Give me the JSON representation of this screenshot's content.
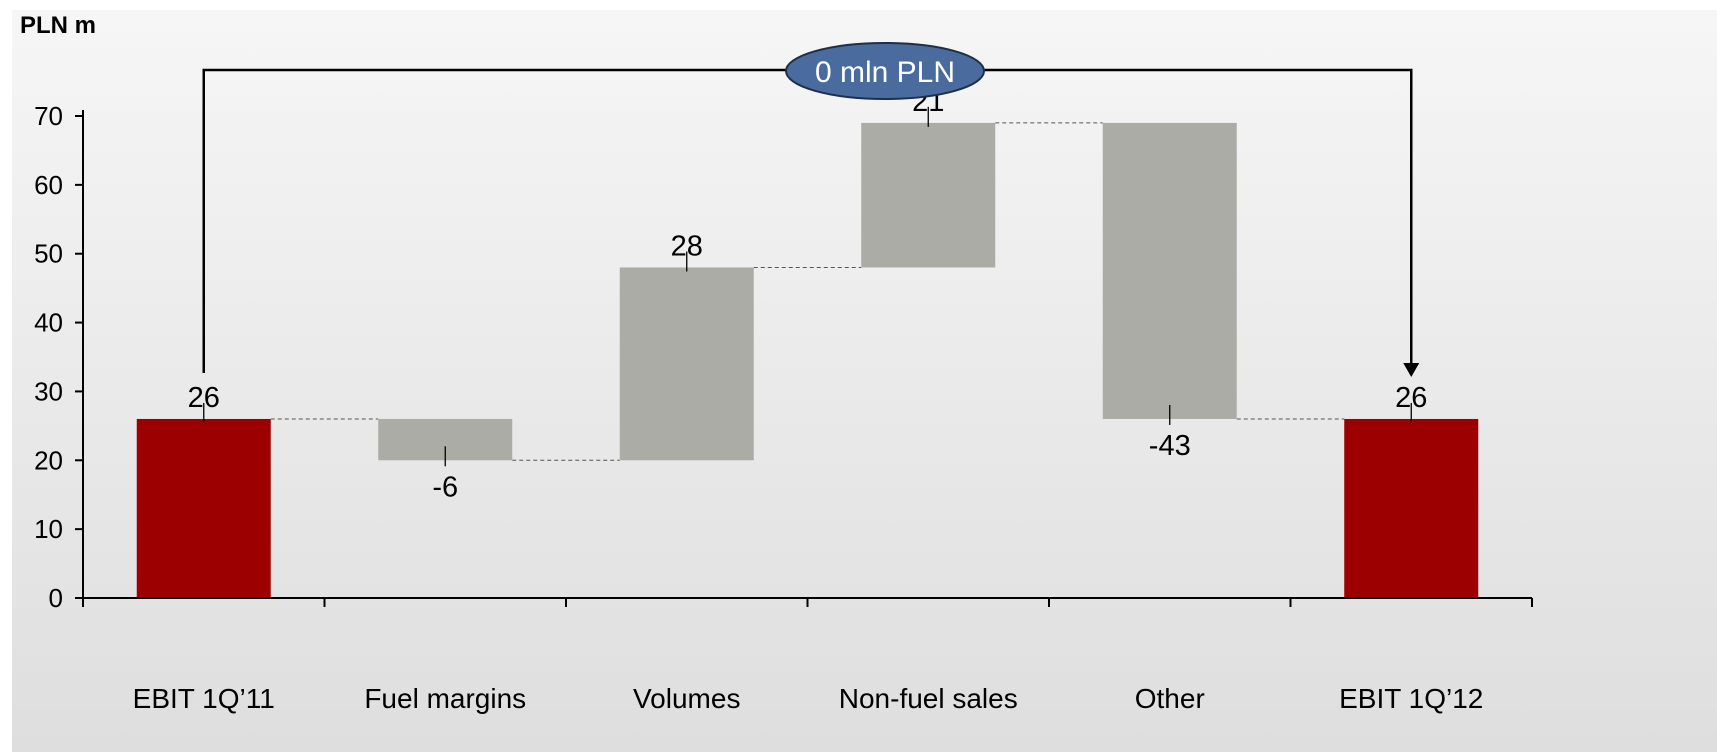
{
  "chart_data": {
    "type": "bar",
    "subtype": "waterfall",
    "unit_label": "PLN m",
    "categories": [
      "EBIT 1Q’11",
      "Fuel margins",
      "Volumes",
      "Non-fuel sales",
      "Other",
      "EBIT 1Q’12"
    ],
    "values": [
      26,
      -6,
      28,
      21,
      -43,
      26
    ],
    "data_labels": [
      "26",
      "-6",
      "28",
      "21",
      "-43",
      "26"
    ],
    "bar_kinds": [
      "total",
      "delta",
      "delta",
      "delta",
      "delta",
      "total"
    ],
    "yticks": [
      "0",
      "10",
      "20",
      "30",
      "40",
      "50",
      "60",
      "70"
    ],
    "ylim": [
      0,
      70
    ],
    "grid": false,
    "connectors": true,
    "bracket_label": "0 mln PLN",
    "colors": {
      "total": "#9c0000",
      "delta": "#acaca6",
      "badge_fill": "#4a6b9e",
      "background_top": "#f6f6f6",
      "background_bottom": "#dedede"
    }
  }
}
